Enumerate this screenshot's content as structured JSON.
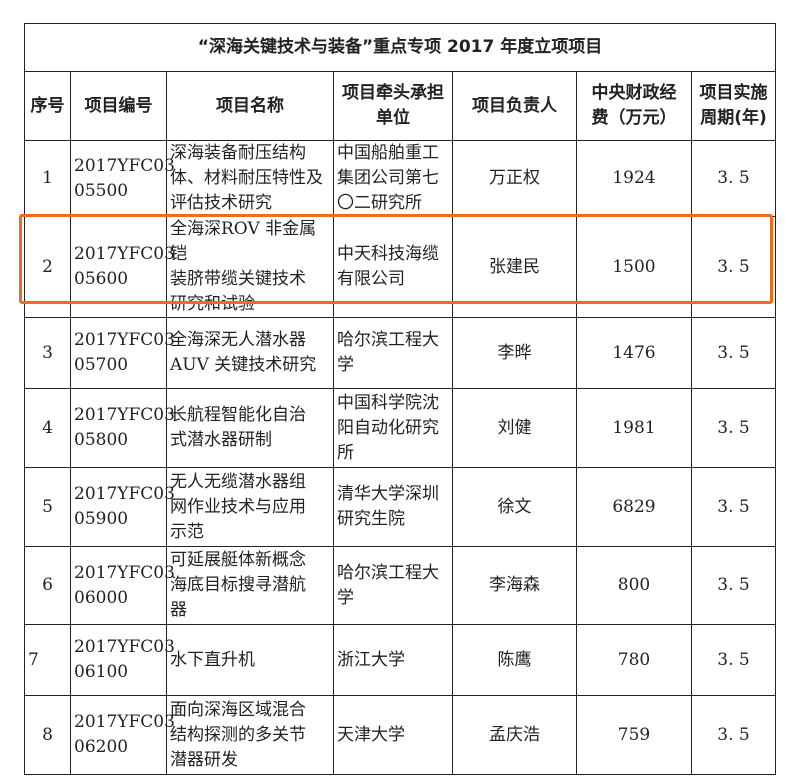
{
  "title": "“深海关键技术与装备”重点专项 2017 年度立项项目",
  "headers": [
    "序号",
    "项目编号",
    "项目名称",
    "项目牵头承担\n单位",
    "项目负责人",
    "中央财政经\n费（万元）",
    "项目实施\n周期(年)"
  ],
  "highlight_color": "#f26b1d",
  "rows": [
    {
      "no": "1",
      "code": "2017YFC03\n05500",
      "name": "深海装备耐压结构\n体、材料耐压特性及\n评估技术研究",
      "org": "中国船舶重工\n集团公司第七\n〇二研究所",
      "leader": "万正权",
      "fund": "1924",
      "period": "3. 5"
    },
    {
      "no": "2",
      "code": "2017YFC03\n05600",
      "name": "全海深ROV 非金属铠\n装脐带缆关键技术\n研究和试验",
      "org": "中天科技海缆\n有限公司",
      "leader": "张建民",
      "fund": "1500",
      "period": "3. 5"
    },
    {
      "no": "3",
      "code": "2017YFC03\n05700",
      "name": "全海深无人潜水器\nAUV 关键技术研究",
      "org": "哈尔滨工程大\n学",
      "leader": "李晔",
      "fund": "1476",
      "period": "3. 5"
    },
    {
      "no": "4",
      "code": "2017YFC03\n05800",
      "name": "长航程智能化自治\n式潜水器研制",
      "org": "中国科学院沈\n阳自动化研究\n所",
      "leader": "刘健",
      "fund": "1981",
      "period": "3. 5"
    },
    {
      "no": "5",
      "code": "2017YFC03\n05900",
      "name": "无人无缆潜水器组\n网作业技术与应用\n示范",
      "org": "清华大学深圳\n研究生院",
      "leader": "徐文",
      "fund": "6829",
      "period": "3. 5"
    },
    {
      "no": "6",
      "code": "2017YFC03\n06000",
      "name": "可延展艇体新概念\n海底目标搜寻潜航\n器",
      "org": "哈尔滨工程大\n学",
      "leader": "李海森",
      "fund": "800",
      "period": "3. 5"
    },
    {
      "no": "7",
      "code": "2017YFC03\n06100",
      "name": "水下直升机",
      "org": "浙江大学",
      "leader": "陈鹰",
      "fund": "780",
      "period": "3. 5"
    },
    {
      "no": "8",
      "code": "2017YFC03\n06200",
      "name": "面向深海区域混合\n结构探测的多关节\n潜器研发",
      "org": "天津大学",
      "leader": "孟庆浩",
      "fund": "759",
      "period": "3. 5"
    }
  ]
}
